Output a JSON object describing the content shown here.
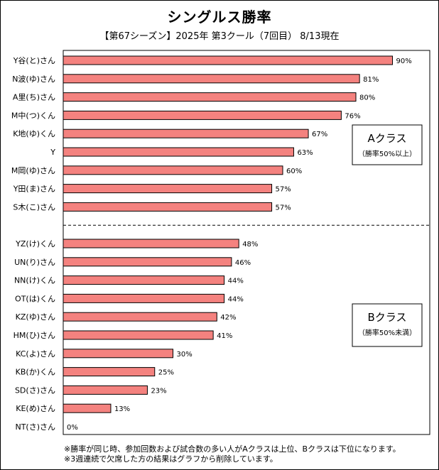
{
  "chart_data": {
    "type": "bar",
    "orientation": "horizontal",
    "title": "シングルス勝率",
    "subtitle": "【第67シーズン】2025年 第3クール（7回目） 8/13現在",
    "xlim": [
      0,
      100
    ],
    "bar_color": "#F4827F",
    "groups": [
      {
        "label": "Aクラス",
        "sublabel": "（勝率50%以上）",
        "categories": [
          "Y谷(と)さん",
          "N波(ゆ)さん",
          "A里(ち)さん",
          "M中(つ)くん",
          "K地(ゆ)くん",
          "Y",
          "M岡(ゆ)さん",
          "Y田(ま)さん",
          "S木(こ)さん"
        ],
        "values": [
          90,
          81,
          80,
          76,
          67,
          63,
          60,
          57,
          57
        ],
        "value_labels": [
          "90%",
          "81%",
          "80%",
          "76%",
          "67%",
          "63%",
          "60%",
          "57%",
          "57%"
        ]
      },
      {
        "label": "Bクラス",
        "sublabel": "（勝率50%未満）",
        "categories": [
          "YZ(け)くん",
          "UN(り)さん",
          "NN(け)くん",
          "OT(は)くん",
          "KZ(ゆ)さん",
          "HM(ひ)さん",
          "KC(よ)さん",
          "KB(か)くん",
          "SD(さ)さん",
          "KE(め)さん",
          "NT(さ)さん"
        ],
        "values": [
          48,
          46,
          44,
          44,
          42,
          41,
          30,
          25,
          23,
          13,
          0
        ],
        "value_labels": [
          "48%",
          "46%",
          "44%",
          "44%",
          "42%",
          "41%",
          "30%",
          "25%",
          "23%",
          "13%",
          "0%"
        ]
      }
    ]
  },
  "notes": [
    "※勝率が同じ時、参加回数および試合数の多い人がAクラスは上位、Bクラスは下位になります。",
    "※3週連続で欠席した方の結果はグラフから削除しています。"
  ]
}
